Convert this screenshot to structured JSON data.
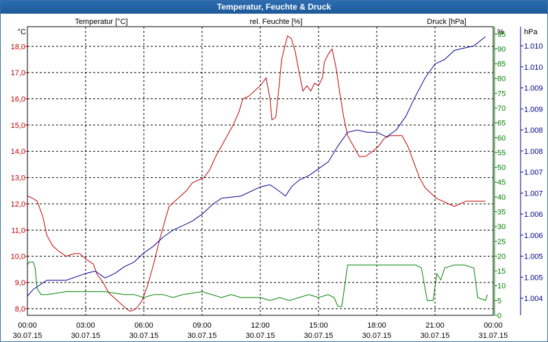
{
  "window": {
    "title": "Temperatur, Feuchte & Druck"
  },
  "chart_data": {
    "type": "line",
    "title": "Temperatur, Feuchte & Druck",
    "colors": {
      "temperature": "#c00000",
      "humidity": "#008000",
      "pressure": "#000090",
      "grid": "#000000"
    },
    "axes": {
      "left": {
        "unit": "°C",
        "ticks": [
          "8,0",
          "9,0",
          "10,0",
          "11,0",
          "12,0",
          "13,0",
          "14,0",
          "15,0",
          "16,0",
          "17,0",
          "18,0"
        ],
        "range": [
          7.75,
          18.75
        ]
      },
      "right1": {
        "unit": "%",
        "ticks": [
          "0",
          "5",
          "10",
          "15",
          "20",
          "25",
          "30",
          "35",
          "40",
          "45",
          "50",
          "55",
          "60",
          "65",
          "70",
          "75",
          "80",
          "85",
          "90",
          "95"
        ],
        "range": [
          0,
          97.5
        ]
      },
      "right2": {
        "unit": "hPa",
        "ticks": [
          "1.004",
          "1.005",
          "1.005",
          "1.006",
          "1.006",
          "1.007",
          "1.007",
          "1.008",
          "1.008",
          "1.009",
          "1.009",
          "1.010",
          "1.010"
        ]
      }
    },
    "x": {
      "range": [
        0,
        24
      ],
      "ticks": [
        {
          "h": 0,
          "time": "00:00",
          "date": "30.07.15"
        },
        {
          "h": 3,
          "time": "03:00",
          "date": "30.07.15"
        },
        {
          "h": 6,
          "time": "06:00",
          "date": "30.07.15"
        },
        {
          "h": 9,
          "time": "09:00",
          "date": "30.07.15"
        },
        {
          "h": 12,
          "time": "12:00",
          "date": "30.07.15"
        },
        {
          "h": 15,
          "time": "15:00",
          "date": "30.07.15"
        },
        {
          "h": 18,
          "time": "18:00",
          "date": "30.07.15"
        },
        {
          "h": 21,
          "time": "21:00",
          "date": "30.07.15"
        },
        {
          "h": 24,
          "time": "00:00",
          "date": "31.07.15"
        }
      ]
    },
    "series": [
      {
        "key": "temperature",
        "name": "Temperatur [°C]",
        "axis": "left",
        "points": [
          [
            0,
            12.3
          ],
          [
            0.3,
            12.2
          ],
          [
            0.5,
            12.1
          ],
          [
            0.8,
            11.5
          ],
          [
            1.0,
            10.8
          ],
          [
            1.3,
            10.4
          ],
          [
            1.6,
            10.2
          ],
          [
            2.0,
            10.0
          ],
          [
            2.4,
            10.1
          ],
          [
            2.7,
            10.1
          ],
          [
            3.0,
            9.9
          ],
          [
            3.4,
            9.7
          ],
          [
            3.6,
            9.3
          ],
          [
            3.9,
            9.0
          ],
          [
            4.2,
            8.6
          ],
          [
            4.5,
            8.4
          ],
          [
            4.8,
            8.2
          ],
          [
            5.1,
            8.0
          ],
          [
            5.3,
            7.9
          ],
          [
            5.6,
            8.0
          ],
          [
            5.9,
            8.3
          ],
          [
            6.2,
            8.9
          ],
          [
            6.5,
            9.7
          ],
          [
            6.8,
            10.6
          ],
          [
            7.1,
            11.4
          ],
          [
            7.3,
            11.9
          ],
          [
            7.6,
            12.1
          ],
          [
            7.9,
            12.3
          ],
          [
            8.2,
            12.5
          ],
          [
            8.5,
            12.8
          ],
          [
            8.8,
            12.9
          ],
          [
            9.1,
            13.0
          ],
          [
            9.4,
            13.3
          ],
          [
            9.7,
            13.8
          ],
          [
            10.0,
            14.2
          ],
          [
            10.3,
            14.6
          ],
          [
            10.6,
            15.0
          ],
          [
            10.9,
            15.5
          ],
          [
            11.1,
            16.0
          ],
          [
            11.4,
            16.1
          ],
          [
            11.7,
            16.3
          ],
          [
            12.0,
            16.5
          ],
          [
            12.3,
            16.8
          ],
          [
            12.5,
            16.0
          ],
          [
            12.6,
            15.2
          ],
          [
            12.8,
            15.3
          ],
          [
            12.9,
            16.0
          ],
          [
            13.1,
            17.5
          ],
          [
            13.4,
            18.4
          ],
          [
            13.6,
            18.3
          ],
          [
            13.8,
            17.8
          ],
          [
            14.0,
            17.0
          ],
          [
            14.2,
            16.3
          ],
          [
            14.4,
            16.5
          ],
          [
            14.6,
            16.3
          ],
          [
            14.8,
            16.6
          ],
          [
            15.0,
            16.5
          ],
          [
            15.2,
            16.8
          ],
          [
            15.3,
            17.4
          ],
          [
            15.5,
            17.7
          ],
          [
            15.7,
            17.9
          ],
          [
            15.9,
            17.2
          ],
          [
            16.1,
            16.2
          ],
          [
            16.3,
            15.3
          ],
          [
            16.5,
            14.6
          ],
          [
            16.8,
            14.2
          ],
          [
            17.1,
            13.8
          ],
          [
            17.4,
            13.8
          ],
          [
            17.8,
            14.0
          ],
          [
            18.1,
            14.2
          ],
          [
            18.4,
            14.5
          ],
          [
            18.7,
            14.6
          ],
          [
            19.0,
            14.6
          ],
          [
            19.3,
            14.6
          ],
          [
            19.6,
            14.2
          ],
          [
            19.9,
            13.6
          ],
          [
            20.2,
            13.0
          ],
          [
            20.5,
            12.6
          ],
          [
            20.8,
            12.4
          ],
          [
            21.1,
            12.2
          ],
          [
            21.4,
            12.1
          ],
          [
            21.7,
            12.0
          ],
          [
            22.0,
            11.9
          ],
          [
            22.3,
            12.0
          ],
          [
            22.6,
            12.1
          ],
          [
            23.0,
            12.1
          ],
          [
            23.4,
            12.1
          ],
          [
            23.6,
            12.1
          ]
        ]
      },
      {
        "key": "humidity",
        "name": "rel. Feuchte [%]",
        "axis": "right1",
        "points": [
          [
            0,
            17
          ],
          [
            0.1,
            18
          ],
          [
            0.3,
            18
          ],
          [
            0.4,
            16
          ],
          [
            0.5,
            9
          ],
          [
            0.7,
            7
          ],
          [
            1.0,
            7
          ],
          [
            2,
            8
          ],
          [
            3,
            8
          ],
          [
            4,
            8
          ],
          [
            5,
            7
          ],
          [
            5.5,
            7
          ],
          [
            6,
            6
          ],
          [
            6.5,
            7
          ],
          [
            7,
            7
          ],
          [
            7.5,
            6
          ],
          [
            8,
            7
          ],
          [
            9,
            8
          ],
          [
            10,
            6
          ],
          [
            10.5,
            7
          ],
          [
            11,
            6
          ],
          [
            12,
            6
          ],
          [
            12.5,
            5
          ],
          [
            13,
            6
          ],
          [
            13.5,
            5
          ],
          [
            14,
            6
          ],
          [
            14.5,
            7
          ],
          [
            15,
            6
          ],
          [
            15.5,
            7
          ],
          [
            15.8,
            6
          ],
          [
            16.0,
            3
          ],
          [
            16.2,
            3
          ],
          [
            16.5,
            17
          ],
          [
            17.5,
            17
          ],
          [
            18,
            17
          ],
          [
            19,
            17
          ],
          [
            20,
            17
          ],
          [
            20.3,
            16
          ],
          [
            20.6,
            5
          ],
          [
            20.9,
            5
          ],
          [
            21.1,
            14
          ],
          [
            21.3,
            12
          ],
          [
            21.5,
            16
          ],
          [
            22,
            17
          ],
          [
            22.5,
            17
          ],
          [
            23.0,
            16
          ],
          [
            23.2,
            6
          ],
          [
            23.6,
            5
          ],
          [
            23.7,
            7
          ]
        ]
      },
      {
        "key": "pressure",
        "name": "Druck [hPa]",
        "axis": "right2",
        "points": [
          [
            0,
            1004.35
          ],
          [
            0.3,
            1004.5
          ],
          [
            1,
            1004.7
          ],
          [
            2,
            1004.7
          ],
          [
            3,
            1004.85
          ],
          [
            3.5,
            1004.9
          ],
          [
            4,
            1004.75
          ],
          [
            4.5,
            1004.85
          ],
          [
            5,
            1005.0
          ],
          [
            5.5,
            1005.1
          ],
          [
            6,
            1005.3
          ],
          [
            6.5,
            1005.45
          ],
          [
            7,
            1005.65
          ],
          [
            7.5,
            1005.8
          ],
          [
            8,
            1005.9
          ],
          [
            8.5,
            1006.0
          ],
          [
            9,
            1006.15
          ],
          [
            9.5,
            1006.35
          ],
          [
            10,
            1006.5
          ],
          [
            11,
            1006.55
          ],
          [
            12,
            1006.75
          ],
          [
            12.5,
            1006.8
          ],
          [
            13,
            1006.65
          ],
          [
            13.3,
            1006.55
          ],
          [
            13.6,
            1006.75
          ],
          [
            14,
            1006.9
          ],
          [
            14.5,
            1007.0
          ],
          [
            15,
            1007.15
          ],
          [
            15.5,
            1007.3
          ],
          [
            16,
            1007.65
          ],
          [
            16.5,
            1007.95
          ],
          [
            17,
            1008.0
          ],
          [
            17.5,
            1007.95
          ],
          [
            18,
            1007.95
          ],
          [
            18.5,
            1007.85
          ],
          [
            19,
            1008.0
          ],
          [
            19.5,
            1008.3
          ],
          [
            20,
            1008.75
          ],
          [
            20.5,
            1009.15
          ],
          [
            21,
            1009.45
          ],
          [
            21.5,
            1009.55
          ],
          [
            22,
            1009.75
          ],
          [
            23,
            1009.85
          ],
          [
            23.6,
            1010.05
          ]
        ],
        "range": [
          1003.93,
          1010.27
        ]
      }
    ]
  }
}
